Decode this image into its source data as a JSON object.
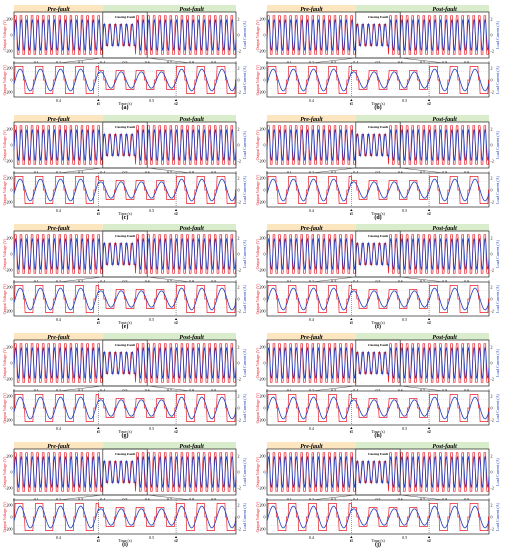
{
  "figure": {
    "bands": {
      "pre": "Pre-fault",
      "post": "Post-fault",
      "zoom": "Closing Fault"
    },
    "ylabel_left": "Output Voltage (V)",
    "ylabel_right": "Load Current (A)",
    "xlabel": "Time (s)",
    "markers": [
      "t1",
      "t2"
    ],
    "colors": {
      "voltage": "#e8202a",
      "current": "#1f3fbf",
      "pre_band": "#fbe6bf",
      "post_band": "#d9edcc",
      "grid": "#cfcfcf"
    }
  },
  "chart_data": [
    {
      "type": "line",
      "panel": "(a)",
      "label": "(a)",
      "top": {
        "xticks": [
          "0",
          "0.1",
          "0.2",
          "0.3",
          "0.4",
          "0.5",
          "0.6",
          "0.7",
          "0.8",
          "0.9",
          "1"
        ],
        "yticks_left": [
          "200",
          "0",
          "-200"
        ],
        "yticks_right": [
          "2",
          "0",
          "-2"
        ],
        "xlim": [
          0,
          1
        ],
        "ylim_left": [
          -300,
          300
        ],
        "ylim_right": [
          -3,
          3
        ],
        "fault_window": [
          0.4,
          0.6
        ]
      },
      "bottom": {
        "xticks": [
          "0.4",
          "0.5"
        ],
        "yticks_left": [
          "200",
          "0",
          "-200"
        ],
        "yticks_right": [
          "2",
          "0",
          "-2"
        ],
        "xlim": [
          0.35,
          0.6
        ]
      },
      "series": [
        {
          "values": []
        },
        {
          "values": []
        }
      ]
    },
    {
      "type": "line",
      "panel": "(b)",
      "label": "(b)",
      "top": {
        "xticks": [
          "0",
          "0.1",
          "0.2",
          "0.3",
          "0.4",
          "0.5",
          "0.6",
          "0.7",
          "0.8",
          "0.9",
          "1"
        ],
        "yticks_left": [
          "200",
          "0",
          "-200"
        ],
        "yticks_right": [
          "2",
          "0",
          "-2"
        ],
        "xlim": [
          0,
          1
        ],
        "ylim_left": [
          -300,
          300
        ],
        "ylim_right": [
          -3,
          3
        ],
        "fault_window": [
          0.4,
          0.6
        ]
      },
      "bottom": {
        "xticks": [
          "0.4",
          "0.5"
        ],
        "yticks_left": [
          "200",
          "0",
          "-200"
        ],
        "yticks_right": [
          "2",
          "0",
          "-2"
        ],
        "xlim": [
          0.35,
          0.6
        ]
      },
      "series": [
        {
          "values": []
        },
        {
          "values": []
        }
      ]
    },
    {
      "type": "line",
      "panel": "(c)",
      "label": "(c)",
      "top": {
        "xticks": [
          "0",
          "0.1",
          "0.2",
          "0.3",
          "0.4",
          "0.5",
          "0.6",
          "0.7",
          "0.8",
          "0.9",
          "1"
        ],
        "yticks_left": [
          "200",
          "0",
          "-200"
        ],
        "yticks_right": [
          "2",
          "0",
          "-2"
        ],
        "xlim": [
          0,
          1
        ],
        "ylim_left": [
          -300,
          300
        ],
        "ylim_right": [
          -3,
          3
        ],
        "fault_window": [
          0.4,
          0.6
        ]
      },
      "bottom": {
        "xticks": [
          "0.4",
          "0.5"
        ],
        "yticks_left": [
          "200",
          "0",
          "-200"
        ],
        "yticks_right": [
          "2",
          "0",
          "-2"
        ],
        "xlim": [
          0.35,
          0.6
        ]
      },
      "series": [
        {
          "values": []
        },
        {
          "values": []
        }
      ]
    },
    {
      "type": "line",
      "panel": "(d)",
      "label": "(d)",
      "top": {
        "xticks": [
          "0",
          "0.1",
          "0.2",
          "0.3",
          "0.4",
          "0.5",
          "0.6",
          "0.7",
          "0.8",
          "0.9",
          "1"
        ],
        "yticks_left": [
          "200",
          "0",
          "-200"
        ],
        "yticks_right": [
          "2",
          "0",
          "-2"
        ],
        "xlim": [
          0,
          1
        ],
        "ylim_left": [
          -300,
          300
        ],
        "ylim_right": [
          -3,
          3
        ],
        "fault_window": [
          0.4,
          0.6
        ]
      },
      "bottom": {
        "xticks": [
          "0.4",
          "0.5"
        ],
        "yticks_left": [
          "200",
          "0",
          "-200"
        ],
        "yticks_right": [
          "2",
          "0",
          "-2"
        ],
        "xlim": [
          0.35,
          0.6
        ]
      },
      "series": [
        {
          "values": []
        },
        {
          "values": []
        }
      ]
    },
    {
      "type": "line",
      "panel": "(e)",
      "label": "(e)",
      "top": {
        "xticks": [
          "0",
          "0.1",
          "0.2",
          "0.3",
          "0.4",
          "0.5",
          "0.6",
          "0.7",
          "0.8",
          "0.9",
          "1"
        ],
        "yticks_left": [
          "200",
          "0",
          "-200"
        ],
        "yticks_right": [
          "2",
          "0",
          "-2"
        ],
        "xlim": [
          0,
          1
        ],
        "ylim_left": [
          -300,
          300
        ],
        "ylim_right": [
          -3,
          3
        ],
        "fault_window": [
          0.4,
          0.6
        ]
      },
      "bottom": {
        "xticks": [
          "0.4",
          "0.5"
        ],
        "yticks_left": [
          "200",
          "0",
          "-200"
        ],
        "yticks_right": [
          "2",
          "0",
          "-2"
        ],
        "xlim": [
          0.35,
          0.6
        ]
      },
      "series": [
        {
          "values": []
        },
        {
          "values": []
        }
      ]
    },
    {
      "type": "line",
      "panel": "(f)",
      "label": "(f)",
      "top": {
        "xticks": [
          "0",
          "0.1",
          "0.2",
          "0.3",
          "0.4",
          "0.5",
          "0.6",
          "0.7",
          "0.8",
          "0.9",
          "1"
        ],
        "yticks_left": [
          "200",
          "0",
          "-200"
        ],
        "yticks_right": [
          "2",
          "0",
          "-2"
        ],
        "xlim": [
          0,
          1
        ],
        "ylim_left": [
          -300,
          300
        ],
        "ylim_right": [
          -3,
          3
        ],
        "fault_window": [
          0.4,
          0.6
        ]
      },
      "bottom": {
        "xticks": [
          "0.4",
          "0.5"
        ],
        "yticks_left": [
          "200",
          "0",
          "-200"
        ],
        "yticks_right": [
          "2",
          "0",
          "-2"
        ],
        "xlim": [
          0.35,
          0.6
        ]
      },
      "series": [
        {
          "values": []
        },
        {
          "values": []
        }
      ]
    },
    {
      "type": "line",
      "panel": "(g)",
      "label": "(g)",
      "top": {
        "xticks": [
          "0",
          "0.1",
          "0.2",
          "0.3",
          "0.4",
          "0.5",
          "0.6",
          "0.7",
          "0.8",
          "0.9",
          "1"
        ],
        "yticks_left": [
          "200",
          "0",
          "-200"
        ],
        "yticks_right": [
          "2",
          "0",
          "-2"
        ],
        "xlim": [
          0,
          1
        ],
        "ylim_left": [
          -300,
          300
        ],
        "ylim_right": [
          -3,
          3
        ],
        "fault_window": [
          0.4,
          0.6
        ]
      },
      "bottom": {
        "xticks": [
          "0.4",
          "0.5"
        ],
        "yticks_left": [
          "200",
          "0",
          "-200"
        ],
        "yticks_right": [
          "2",
          "0",
          "-2"
        ],
        "xlim": [
          0.35,
          0.6
        ]
      },
      "series": [
        {
          "values": []
        },
        {
          "values": []
        }
      ]
    },
    {
      "type": "line",
      "panel": "(h)",
      "label": "(h)",
      "top": {
        "xticks": [
          "0",
          "0.1",
          "0.2",
          "0.3",
          "0.4",
          "0.5",
          "0.6",
          "0.7",
          "0.8",
          "0.9",
          "1"
        ],
        "yticks_left": [
          "200",
          "0",
          "-200"
        ],
        "yticks_right": [
          "2",
          "0",
          "-2"
        ],
        "xlim": [
          0,
          1
        ],
        "ylim_left": [
          -300,
          300
        ],
        "ylim_right": [
          -3,
          3
        ],
        "fault_window": [
          0.4,
          0.6
        ]
      },
      "bottom": {
        "xticks": [
          "0.4",
          "0.5"
        ],
        "yticks_left": [
          "200",
          "0",
          "-200"
        ],
        "yticks_right": [
          "2",
          "0",
          "-2"
        ],
        "xlim": [
          0.35,
          0.6
        ]
      },
      "series": [
        {
          "values": []
        },
        {
          "values": []
        }
      ]
    },
    {
      "type": "line",
      "panel": "(i)",
      "label": "(i)",
      "top": {
        "xticks": [
          "0",
          "0.1",
          "0.2",
          "0.3",
          "0.4",
          "0.5",
          "0.6",
          "0.7",
          "0.8",
          "0.9",
          "1"
        ],
        "yticks_left": [
          "200",
          "0",
          "-200"
        ],
        "yticks_right": [
          "2",
          "0",
          "-2"
        ],
        "xlim": [
          0,
          1
        ],
        "ylim_left": [
          -300,
          300
        ],
        "ylim_right": [
          -3,
          3
        ],
        "fault_window": [
          0.4,
          0.6
        ]
      },
      "bottom": {
        "xticks": [
          "0.4",
          "0.5"
        ],
        "yticks_left": [
          "200",
          "0",
          "-200"
        ],
        "yticks_right": [
          "2",
          "0",
          "-2"
        ],
        "xlim": [
          0.35,
          0.6
        ]
      },
      "series": [
        {
          "values": []
        },
        {
          "values": []
        }
      ]
    },
    {
      "type": "line",
      "panel": "(j)",
      "label": "(j)",
      "top": {
        "xticks": [
          "0",
          "0.1",
          "0.2",
          "0.3",
          "0.4",
          "0.5",
          "0.6",
          "0.7",
          "0.8",
          "0.9",
          "1"
        ],
        "yticks_left": [
          "200",
          "0",
          "-200"
        ],
        "yticks_right": [
          "2",
          "0",
          "-2"
        ],
        "xlim": [
          0,
          1
        ],
        "ylim_left": [
          -300,
          300
        ],
        "ylim_right": [
          -3,
          3
        ],
        "fault_window": [
          0.4,
          0.6
        ]
      },
      "bottom": {
        "xticks": [
          "0.4",
          "0.5"
        ],
        "yticks_left": [
          "200",
          "0",
          "-200"
        ],
        "yticks_right": [
          "2",
          "0",
          "-2"
        ],
        "xlim": [
          0.35,
          0.6
        ]
      },
      "series": [
        {
          "values": []
        },
        {
          "values": []
        }
      ]
    }
  ]
}
